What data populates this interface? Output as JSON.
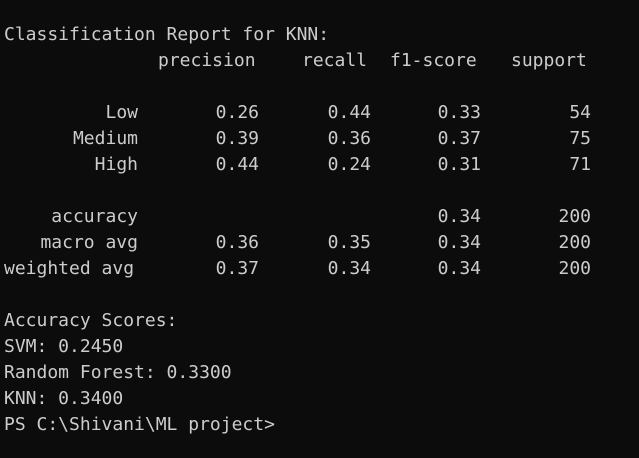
{
  "report": {
    "title": "Classification Report for KNN:",
    "headers": [
      "precision",
      "recall",
      "f1-score",
      "support"
    ],
    "rows": [
      {
        "label": "Low",
        "precision": "0.26",
        "recall": "0.44",
        "f1": "0.33",
        "support": "54"
      },
      {
        "label": "Medium",
        "precision": "0.39",
        "recall": "0.36",
        "f1": "0.37",
        "support": "75"
      },
      {
        "label": "High",
        "precision": "0.44",
        "recall": "0.24",
        "f1": "0.31",
        "support": "71"
      }
    ],
    "summary": [
      {
        "label": "accuracy",
        "precision": "",
        "recall": "",
        "f1": "0.34",
        "support": "200"
      },
      {
        "label": "macro avg",
        "precision": "0.36",
        "recall": "0.35",
        "f1": "0.34",
        "support": "200"
      },
      {
        "label": "weighted avg",
        "precision": "0.37",
        "recall": "0.34",
        "f1": "0.34",
        "support": "200"
      }
    ]
  },
  "scores": {
    "heading": "Accuracy Scores:",
    "lines": [
      "SVM: 0.2450",
      "Random Forest: 0.3300",
      "KNN: 0.3400"
    ]
  },
  "prompt": "PS C:\\Shivani\\ML project>"
}
